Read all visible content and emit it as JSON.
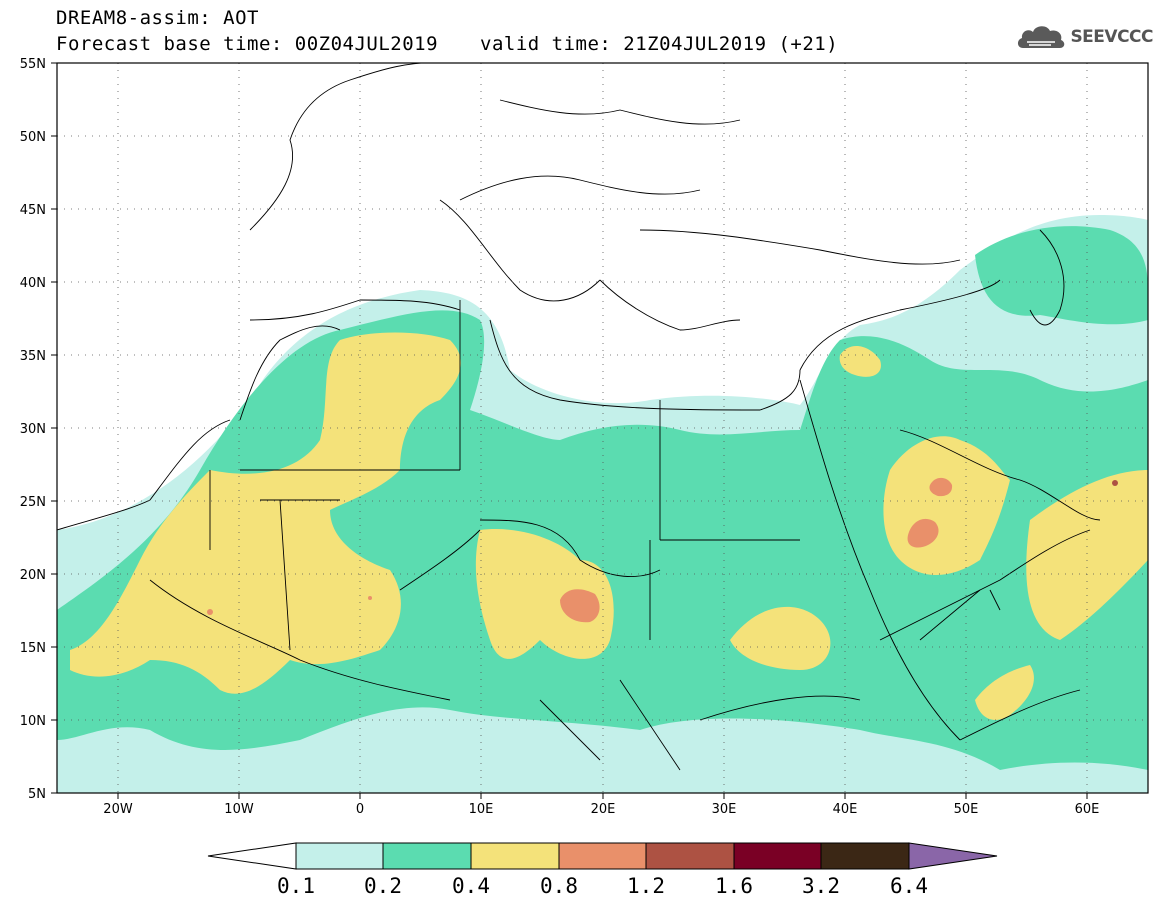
{
  "header": {
    "line1": "DREAM8-assim: AOT",
    "line2": "Forecast base time: 00Z04JUL2019",
    "line3": "valid time: 21Z04JUL2019 (+21)",
    "logo_text": "SEEVCCC"
  },
  "map": {
    "lon_range": [
      -25,
      65
    ],
    "lat_range": [
      5,
      55
    ],
    "lon_labels": [
      "20W",
      "10W",
      "0",
      "10E",
      "20E",
      "30E",
      "40E",
      "50E",
      "60E"
    ],
    "lat_labels": [
      "55N",
      "50N",
      "45N",
      "40N",
      "35N",
      "30N",
      "25N",
      "20N",
      "15N",
      "10N",
      "5N"
    ],
    "grid": "dotted"
  },
  "colorbar": {
    "labels": [
      "0.1",
      "0.2",
      "0.4",
      "0.8",
      "1.2",
      "1.6",
      "3.2",
      "6.4"
    ],
    "colors": [
      "#c4f0ea",
      "#5bdcb0",
      "#f4e27a",
      "#e9906a",
      "#ad5243",
      "#7a0025",
      "#3b2715",
      "#8a66a8"
    ],
    "under_color": "#ffffff"
  },
  "icons": [
    "cloud-icon"
  ]
}
